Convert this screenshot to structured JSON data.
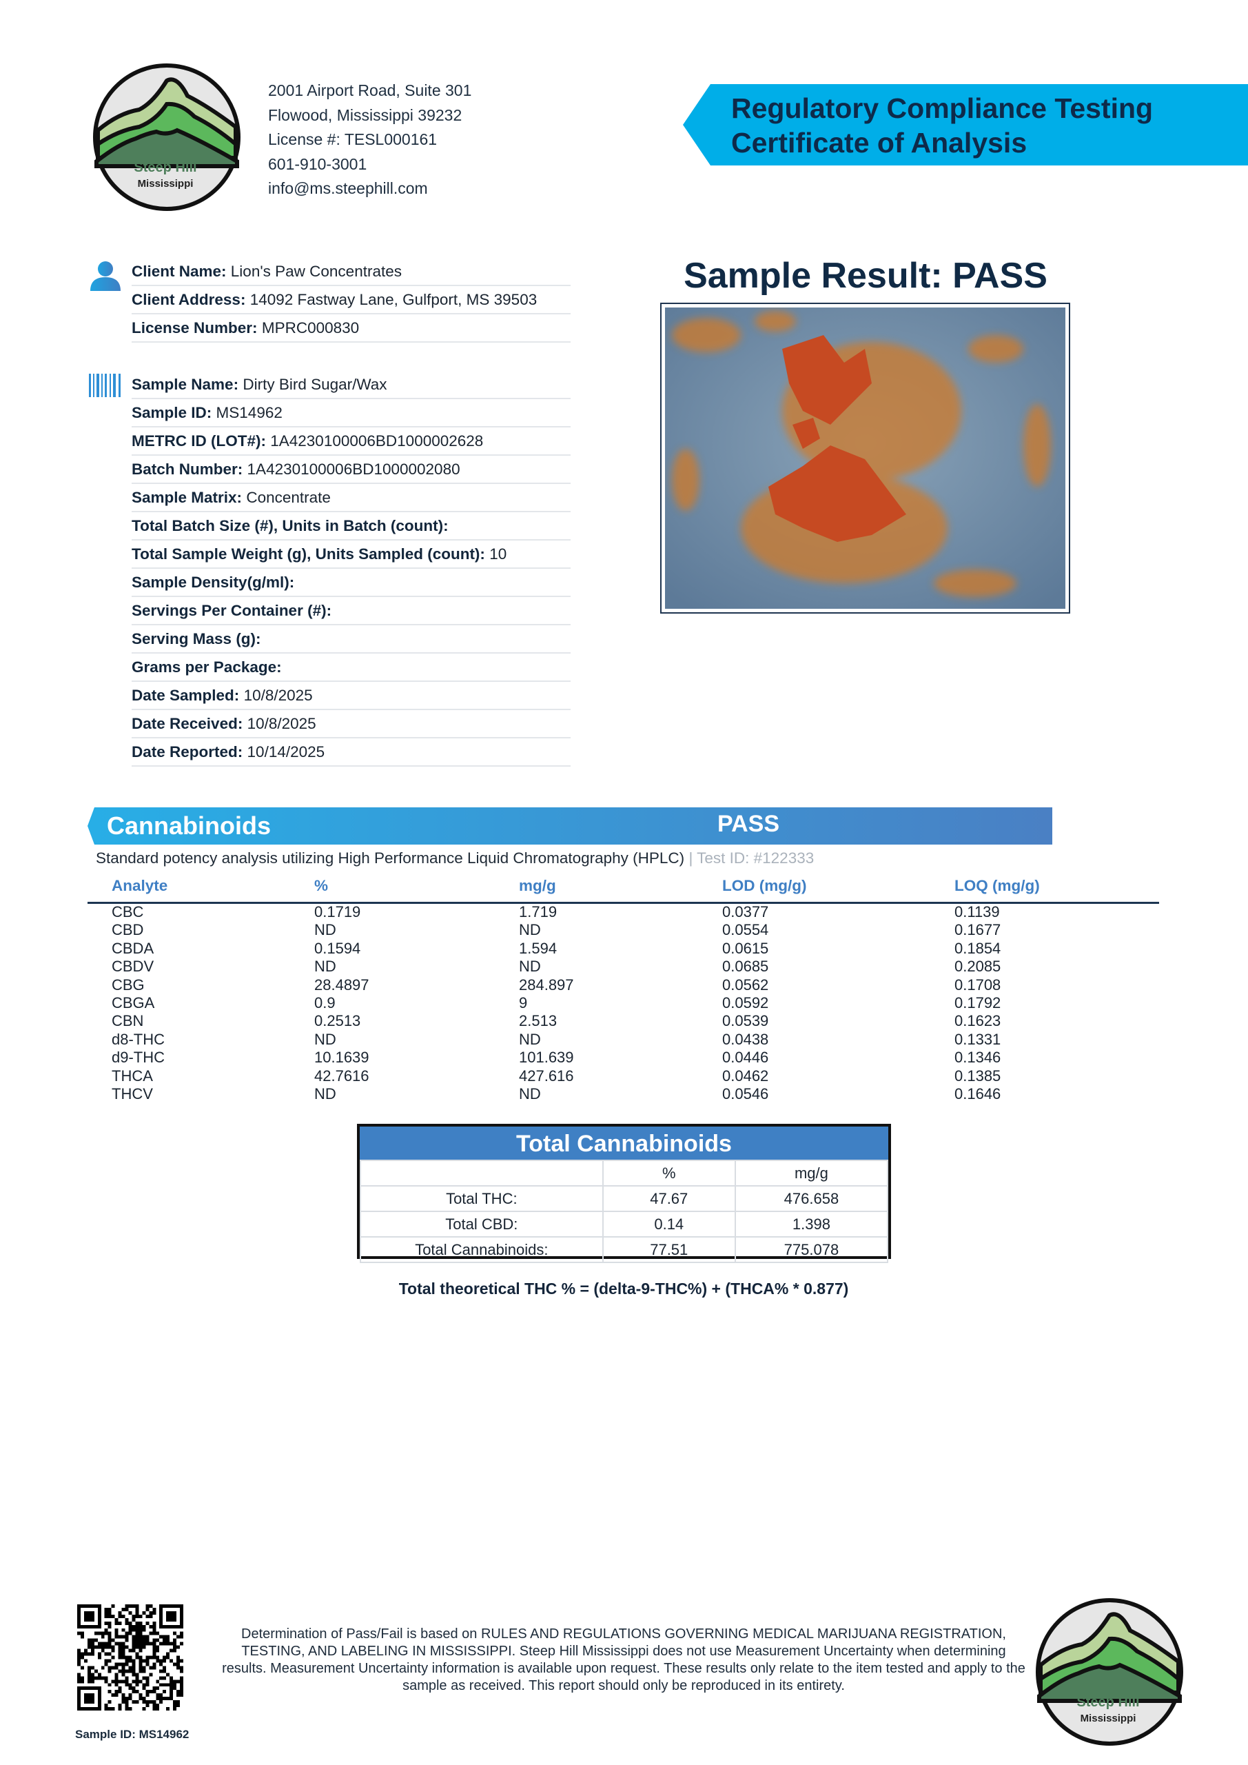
{
  "header": {
    "logo_text": [
      "Steep Hill",
      "Mississippi"
    ],
    "address_lines": [
      "2001 Airport Road, Suite 301",
      "Flowood, Mississippi 39232",
      "License #: TESL000161",
      "601-910-3001",
      "info@ms.steephill.com"
    ],
    "banner_lines": [
      "Regulatory Compliance Testing",
      "Certificate of Analysis"
    ],
    "banner_color": "#00aee8"
  },
  "client": {
    "icon": "user-icon",
    "rows": [
      {
        "label": "Client Name:",
        "value": "Lion's Paw Concentrates"
      },
      {
        "label": "Client Address:",
        "value": "14092 Fastway Lane, Gulfport, MS 39503"
      },
      {
        "label": "License Number:",
        "value": "MPRC000830"
      }
    ]
  },
  "sample": {
    "icon": "barcode-icon",
    "rows": [
      {
        "label": "Sample Name:",
        "value": "Dirty Bird Sugar/Wax"
      },
      {
        "label": "Sample ID:",
        "value": "MS14962"
      },
      {
        "label": "METRC ID (LOT#):",
        "value": "1A4230100006BD1000002628"
      },
      {
        "label": "Batch Number:",
        "value": "1A4230100006BD1000002080"
      },
      {
        "label": "Sample Matrix:",
        "value": "Concentrate"
      },
      {
        "label": "Total Batch Size (#), Units in Batch (count):",
        "value": ""
      },
      {
        "label": "Total Sample Weight (g), Units Sampled (count):",
        "value": "10"
      },
      {
        "label": "Sample Density(g/ml):",
        "value": ""
      },
      {
        "label": "Servings Per Container (#):",
        "value": ""
      },
      {
        "label": "Serving Mass (g):",
        "value": ""
      },
      {
        "label": "Grams per Package:",
        "value": ""
      },
      {
        "label": "Date Sampled:",
        "value": "10/8/2025"
      },
      {
        "label": "Date Received:",
        "value": "10/8/2025"
      },
      {
        "label": "Date Reported:",
        "value": "10/14/2025"
      }
    ]
  },
  "result": {
    "title": "Sample Result: PASS"
  },
  "cannabinoids": {
    "title": "Cannabinoids",
    "status": "PASS",
    "description": "Standard potency analysis utilizing High Performance Liquid Chromatography (HPLC)",
    "test_id": " | Test ID: #122333",
    "columns": [
      "Analyte",
      "%",
      "mg/g",
      "LOD (mg/g)",
      "LOQ (mg/g)"
    ],
    "rows": [
      [
        "CBC",
        "0.1719",
        "1.719",
        "0.0377",
        "0.1139"
      ],
      [
        "CBD",
        "ND",
        "ND",
        "0.0554",
        "0.1677"
      ],
      [
        "CBDA",
        "0.1594",
        "1.594",
        "0.0615",
        "0.1854"
      ],
      [
        "CBDV",
        "ND",
        "ND",
        "0.0685",
        "0.2085"
      ],
      [
        "CBG",
        "28.4897",
        "284.897",
        "0.0562",
        "0.1708"
      ],
      [
        "CBGA",
        "0.9",
        "9",
        "0.0592",
        "0.1792"
      ],
      [
        "CBN",
        "0.2513",
        "2.513",
        "0.0539",
        "0.1623"
      ],
      [
        "d8-THC",
        "ND",
        "ND",
        "0.0438",
        "0.1331"
      ],
      [
        "d9-THC",
        "10.1639",
        "101.639",
        "0.0446",
        "0.1346"
      ],
      [
        "THCA",
        "42.7616",
        "427.616",
        "0.0462",
        "0.1385"
      ],
      [
        "THCV",
        "ND",
        "ND",
        "0.0546",
        "0.1646"
      ]
    ]
  },
  "totals": {
    "title": "Total Cannabinoids",
    "columns": [
      "",
      "%",
      "mg/g"
    ],
    "rows": [
      [
        "Total THC:",
        "47.67",
        "476.658"
      ],
      [
        "Total CBD:",
        "0.14",
        "1.398"
      ],
      [
        "Total Cannabinoids:",
        "77.51",
        "775.078"
      ]
    ],
    "formula": "Total theoretical THC % = (delta-9-THC%) + (THCA% * 0.877)"
  },
  "footer": {
    "sample_id": "Sample ID: MS14962",
    "disclaimer": "Determination of Pass/Fail is based on RULES AND REGULATIONS GOVERNING MEDICAL MARIJUANA REGISTRATION, TESTING, AND LABELING IN MISSISSIPPI. Steep Hill Mississippi does not use Measurement Uncertainty when determining results. Measurement Uncertainty information is available upon request. These results only relate to the item tested and apply to the sample as received. This report should only be reproduced in its entirety."
  }
}
